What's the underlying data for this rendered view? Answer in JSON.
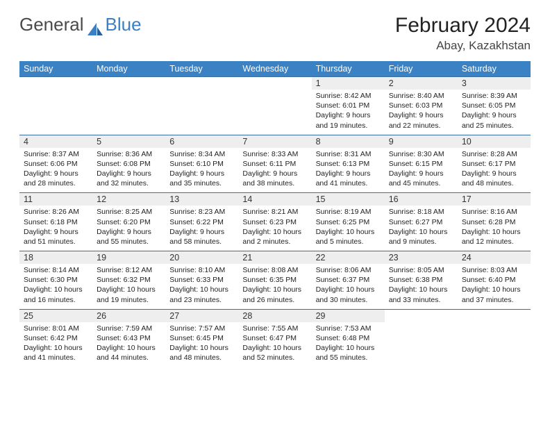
{
  "logo": {
    "text_gray": "General",
    "text_blue": "Blue"
  },
  "title": "February 2024",
  "location": "Abay, Kazakhstan",
  "colors": {
    "header_bg": "#3b82c4",
    "header_text": "#ffffff",
    "daynum_bg": "#eeeeee",
    "row_divider": "#3b6ea0",
    "logo_gray": "#4a4a4a",
    "logo_blue": "#3b7fc4"
  },
  "day_headers": [
    "Sunday",
    "Monday",
    "Tuesday",
    "Wednesday",
    "Thursday",
    "Friday",
    "Saturday"
  ],
  "weeks": [
    [
      null,
      null,
      null,
      null,
      {
        "n": "1",
        "sr": "8:42 AM",
        "ss": "6:01 PM",
        "dh": "9",
        "dm": "19"
      },
      {
        "n": "2",
        "sr": "8:40 AM",
        "ss": "6:03 PM",
        "dh": "9",
        "dm": "22"
      },
      {
        "n": "3",
        "sr": "8:39 AM",
        "ss": "6:05 PM",
        "dh": "9",
        "dm": "25"
      }
    ],
    [
      {
        "n": "4",
        "sr": "8:37 AM",
        "ss": "6:06 PM",
        "dh": "9",
        "dm": "28"
      },
      {
        "n": "5",
        "sr": "8:36 AM",
        "ss": "6:08 PM",
        "dh": "9",
        "dm": "32"
      },
      {
        "n": "6",
        "sr": "8:34 AM",
        "ss": "6:10 PM",
        "dh": "9",
        "dm": "35"
      },
      {
        "n": "7",
        "sr": "8:33 AM",
        "ss": "6:11 PM",
        "dh": "9",
        "dm": "38"
      },
      {
        "n": "8",
        "sr": "8:31 AM",
        "ss": "6:13 PM",
        "dh": "9",
        "dm": "41"
      },
      {
        "n": "9",
        "sr": "8:30 AM",
        "ss": "6:15 PM",
        "dh": "9",
        "dm": "45"
      },
      {
        "n": "10",
        "sr": "8:28 AM",
        "ss": "6:17 PM",
        "dh": "9",
        "dm": "48"
      }
    ],
    [
      {
        "n": "11",
        "sr": "8:26 AM",
        "ss": "6:18 PM",
        "dh": "9",
        "dm": "51"
      },
      {
        "n": "12",
        "sr": "8:25 AM",
        "ss": "6:20 PM",
        "dh": "9",
        "dm": "55"
      },
      {
        "n": "13",
        "sr": "8:23 AM",
        "ss": "6:22 PM",
        "dh": "9",
        "dm": "58"
      },
      {
        "n": "14",
        "sr": "8:21 AM",
        "ss": "6:23 PM",
        "dh": "10",
        "dm": "2"
      },
      {
        "n": "15",
        "sr": "8:19 AM",
        "ss": "6:25 PM",
        "dh": "10",
        "dm": "5"
      },
      {
        "n": "16",
        "sr": "8:18 AM",
        "ss": "6:27 PM",
        "dh": "10",
        "dm": "9"
      },
      {
        "n": "17",
        "sr": "8:16 AM",
        "ss": "6:28 PM",
        "dh": "10",
        "dm": "12"
      }
    ],
    [
      {
        "n": "18",
        "sr": "8:14 AM",
        "ss": "6:30 PM",
        "dh": "10",
        "dm": "16"
      },
      {
        "n": "19",
        "sr": "8:12 AM",
        "ss": "6:32 PM",
        "dh": "10",
        "dm": "19"
      },
      {
        "n": "20",
        "sr": "8:10 AM",
        "ss": "6:33 PM",
        "dh": "10",
        "dm": "23"
      },
      {
        "n": "21",
        "sr": "8:08 AM",
        "ss": "6:35 PM",
        "dh": "10",
        "dm": "26"
      },
      {
        "n": "22",
        "sr": "8:06 AM",
        "ss": "6:37 PM",
        "dh": "10",
        "dm": "30"
      },
      {
        "n": "23",
        "sr": "8:05 AM",
        "ss": "6:38 PM",
        "dh": "10",
        "dm": "33"
      },
      {
        "n": "24",
        "sr": "8:03 AM",
        "ss": "6:40 PM",
        "dh": "10",
        "dm": "37"
      }
    ],
    [
      {
        "n": "25",
        "sr": "8:01 AM",
        "ss": "6:42 PM",
        "dh": "10",
        "dm": "41"
      },
      {
        "n": "26",
        "sr": "7:59 AM",
        "ss": "6:43 PM",
        "dh": "10",
        "dm": "44"
      },
      {
        "n": "27",
        "sr": "7:57 AM",
        "ss": "6:45 PM",
        "dh": "10",
        "dm": "48"
      },
      {
        "n": "28",
        "sr": "7:55 AM",
        "ss": "6:47 PM",
        "dh": "10",
        "dm": "52"
      },
      {
        "n": "29",
        "sr": "7:53 AM",
        "ss": "6:48 PM",
        "dh": "10",
        "dm": "55"
      },
      null,
      null
    ]
  ]
}
